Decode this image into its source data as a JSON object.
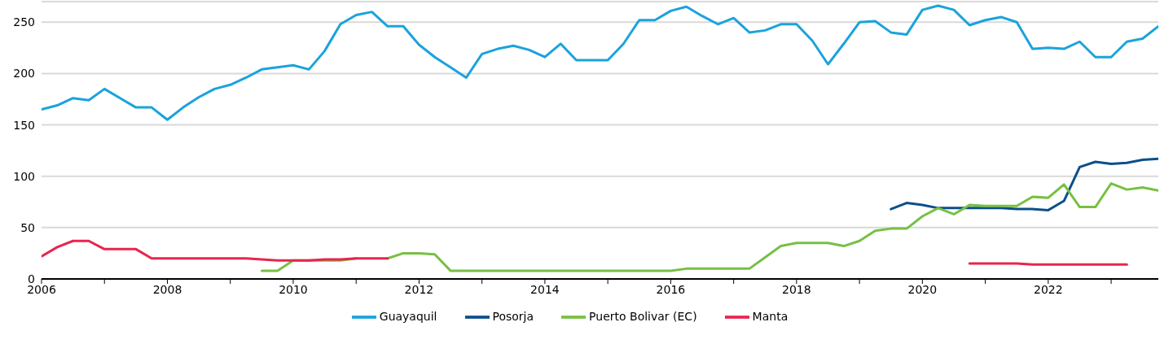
{
  "chart_data": {
    "type": "line",
    "x": [
      2006,
      2006.25,
      2006.5,
      2006.75,
      2007,
      2007.25,
      2007.5,
      2007.75,
      2008,
      2008.25,
      2008.5,
      2008.75,
      2009,
      2009.25,
      2009.5,
      2009.75,
      2010,
      2010.25,
      2010.5,
      2010.75,
      2011,
      2011.25,
      2011.5,
      2011.75,
      2012,
      2012.25,
      2012.5,
      2012.75,
      2013,
      2013.25,
      2013.5,
      2013.75,
      2014,
      2014.25,
      2014.5,
      2014.75,
      2015,
      2015.25,
      2015.5,
      2015.75,
      2016,
      2016.25,
      2016.5,
      2016.75,
      2017,
      2017.25,
      2017.5,
      2017.75,
      2018,
      2018.25,
      2018.5,
      2018.75,
      2019,
      2019.25,
      2019.5,
      2019.75,
      2020,
      2020.25,
      2020.5,
      2020.75,
      2021,
      2021.25,
      2021.5,
      2021.75,
      2022,
      2022.25,
      2022.5,
      2022.75,
      2023,
      2023.25,
      2023.5,
      2023.75
    ],
    "series": [
      {
        "name": "Guayaquil",
        "color": "#1aa3dc",
        "values": [
          165,
          169,
          176,
          174,
          185,
          176,
          167,
          167,
          155,
          167,
          177,
          185,
          189,
          196,
          204,
          206,
          208,
          204,
          222,
          248,
          257,
          260,
          246,
          246,
          228,
          216,
          206,
          196,
          219,
          224,
          227,
          223,
          216,
          229,
          213,
          213,
          213,
          229,
          252,
          252,
          261,
          265,
          256,
          248,
          254,
          240,
          242,
          248,
          248,
          232,
          209,
          229,
          250,
          251,
          240,
          238,
          262,
          266,
          262,
          247,
          252,
          255,
          250,
          224,
          225,
          224,
          231,
          216,
          216,
          231,
          234,
          246
        ]
      },
      {
        "name": "Posorja",
        "color": "#0b4f8a",
        "values": [
          null,
          null,
          null,
          null,
          null,
          null,
          null,
          null,
          null,
          null,
          null,
          null,
          null,
          null,
          null,
          null,
          null,
          null,
          null,
          null,
          null,
          null,
          null,
          null,
          null,
          null,
          null,
          null,
          null,
          null,
          null,
          null,
          null,
          null,
          null,
          null,
          null,
          null,
          null,
          null,
          null,
          null,
          null,
          null,
          null,
          null,
          null,
          null,
          null,
          null,
          null,
          null,
          null,
          null,
          68,
          74,
          72,
          69,
          69,
          69,
          69,
          69,
          68,
          68,
          67,
          76,
          109,
          114,
          112,
          113,
          116,
          117
        ]
      },
      {
        "name": "Puerto Bolivar (EC)",
        "color": "#77c043",
        "values": [
          null,
          null,
          null,
          null,
          null,
          null,
          null,
          null,
          null,
          null,
          null,
          null,
          null,
          null,
          8,
          8,
          18,
          18,
          18,
          18,
          20,
          null,
          20,
          25,
          25,
          24,
          8,
          8,
          8,
          8,
          8,
          8,
          8,
          8,
          8,
          8,
          8,
          8,
          8,
          8,
          8,
          10,
          10,
          10,
          10,
          10,
          21,
          32,
          35,
          35,
          35,
          32,
          37,
          47,
          49,
          49,
          61,
          69,
          63,
          72,
          71,
          71,
          71,
          80,
          79,
          92,
          70,
          70,
          93,
          87,
          89,
          86
        ]
      },
      {
        "name": "Manta",
        "color": "#e8254f",
        "values": [
          22,
          31,
          37,
          37,
          29,
          29,
          29,
          20,
          20,
          20,
          20,
          20,
          20,
          20,
          19,
          18,
          18,
          18,
          19,
          19,
          20,
          20,
          20,
          null,
          null,
          null,
          null,
          null,
          null,
          null,
          null,
          null,
          null,
          null,
          null,
          null,
          null,
          null,
          null,
          null,
          null,
          null,
          null,
          null,
          null,
          null,
          null,
          null,
          null,
          null,
          null,
          null,
          null,
          null,
          null,
          null,
          null,
          null,
          null,
          15,
          15,
          15,
          15,
          14,
          14,
          14,
          14,
          14,
          14,
          14,
          null,
          null
        ]
      }
    ],
    "xlim": [
      2006,
      2023.75
    ],
    "xticks": [
      2006,
      {
        "value": 2007,
        "label": null
      },
      2008,
      {
        "value": 2009,
        "label": null
      },
      2010,
      {
        "value": 2011,
        "label": null
      },
      2012,
      {
        "value": 2013,
        "label": null
      },
      2014,
      {
        "value": 2015,
        "label": null
      },
      2016,
      {
        "value": 2017,
        "label": null
      },
      2018,
      {
        "value": 2019,
        "label": null
      },
      2020,
      {
        "value": 2021,
        "label": null
      },
      2022,
      {
        "value": 2023,
        "label": null
      }
    ],
    "ylim": [
      0,
      270
    ],
    "yticks": [
      0,
      50,
      100,
      150,
      200,
      250
    ],
    "grid": "y",
    "legend": "bottom",
    "line_style": "solid"
  }
}
